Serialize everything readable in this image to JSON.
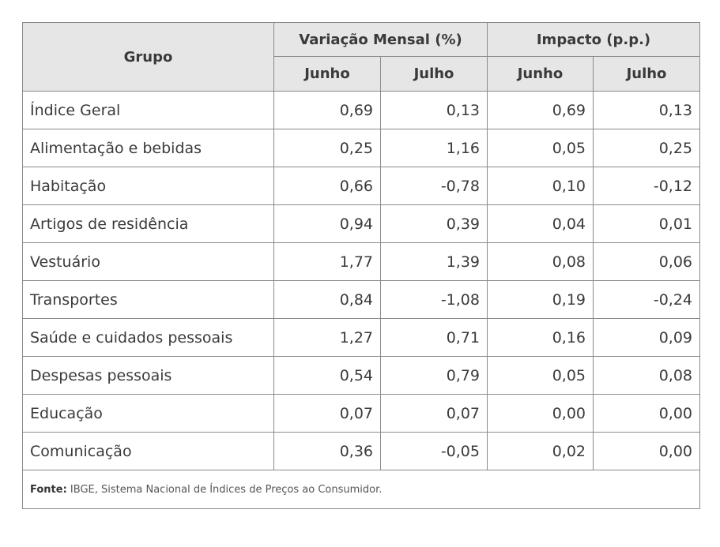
{
  "table": {
    "group_header": "Grupo",
    "col_groups": [
      {
        "label": "Variação Mensal (%)"
      },
      {
        "label": "Impacto (p.p.)"
      }
    ],
    "sub_headers": [
      "Junho",
      "Julho",
      "Junho",
      "Julho"
    ],
    "rows": [
      {
        "label": "Índice Geral",
        "values": [
          "0,69",
          "0,13",
          "0,69",
          "0,13"
        ]
      },
      {
        "label": "Alimentação e bebidas",
        "values": [
          "0,25",
          "1,16",
          "0,05",
          "0,25"
        ]
      },
      {
        "label": "Habitação",
        "values": [
          "0,66",
          "-0,78",
          "0,10",
          "-0,12"
        ]
      },
      {
        "label": "Artigos de residência",
        "values": [
          "0,94",
          "0,39",
          "0,04",
          "0,01"
        ]
      },
      {
        "label": "Vestuário",
        "values": [
          "1,77",
          "1,39",
          "0,08",
          "0,06"
        ]
      },
      {
        "label": "Transportes",
        "values": [
          "0,84",
          "-1,08",
          "0,19",
          "-0,24"
        ]
      },
      {
        "label": "Saúde e cuidados pessoais",
        "values": [
          "1,27",
          "0,71",
          "0,16",
          "0,09"
        ]
      },
      {
        "label": "Despesas pessoais",
        "values": [
          "0,54",
          "0,79",
          "0,05",
          "0,08"
        ]
      },
      {
        "label": "Educação",
        "values": [
          "0,07",
          "0,07",
          "0,00",
          "0,00"
        ]
      },
      {
        "label": "Comunicação",
        "values": [
          "0,36",
          "-0,05",
          "0,02",
          "0,00"
        ]
      }
    ],
    "source": {
      "label": "Fonte:",
      "text": " IBGE, Sistema Nacional de Índices de Preços ao Consumidor."
    }
  }
}
